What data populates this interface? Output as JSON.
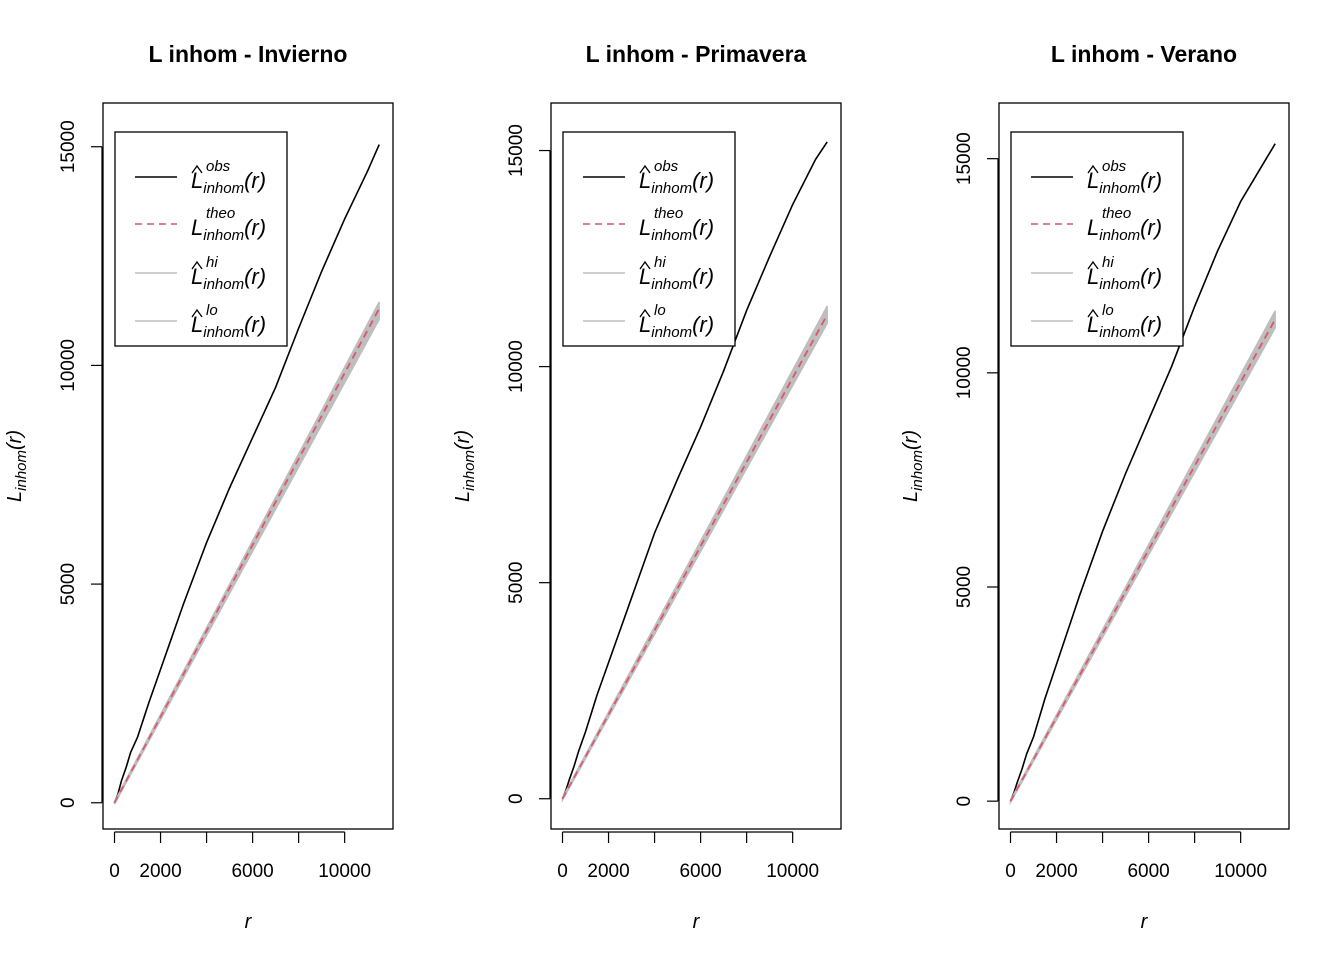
{
  "figure": {
    "background": "#ffffff"
  },
  "legend_entries": [
    {
      "sym": "L",
      "sup": "obs",
      "sub": "inhom",
      "arg": "(r)",
      "hat": true,
      "color": "#000000",
      "dash": false
    },
    {
      "sym": "L",
      "sup": "theo",
      "sub": "inhom",
      "arg": "(r)",
      "hat": false,
      "color": "#DF536B",
      "dash": true
    },
    {
      "sym": "L",
      "sup": "hi",
      "sub": "inhom",
      "arg": "(r)",
      "hat": true,
      "color": "#BEBEBE",
      "dash": false
    },
    {
      "sym": "L",
      "sup": "lo",
      "sub": "inhom",
      "arg": "(r)",
      "hat": true,
      "color": "#BEBEBE",
      "dash": false
    }
  ],
  "chart_data": [
    {
      "type": "line",
      "title": "L inhom - Invierno",
      "xlabel": "r",
      "ylabel": {
        "sym": "L",
        "sub": "inhom",
        "arg": "(r)"
      },
      "xlim": [
        -500,
        12100
      ],
      "ylim": [
        -600,
        16000
      ],
      "xticks": [
        0,
        2000,
        4000,
        6000,
        8000,
        10000
      ],
      "xtick_labels": [
        "0",
        "2000",
        "",
        "6000",
        "",
        "10000"
      ],
      "yticks": [
        0,
        5000,
        10000,
        15000
      ],
      "ytick_labels": [
        "0",
        "5000",
        "10000",
        "15000"
      ],
      "legend_position": "top-left",
      "series": [
        {
          "key": "obs",
          "x": [
            0,
            150,
            300,
            500,
            700,
            1000,
            1500,
            2000,
            2500,
            3000,
            3500,
            4000,
            5000,
            6000,
            7000,
            8000,
            9000,
            10000,
            11000,
            11500
          ],
          "y": [
            0,
            200,
            500,
            800,
            1150,
            1500,
            2300,
            3050,
            3800,
            4550,
            5250,
            5950,
            7200,
            8350,
            9500,
            10850,
            12150,
            13350,
            14450,
            15050
          ]
        },
        {
          "key": "theo",
          "x": [
            0,
            11500
          ],
          "y": [
            0,
            11300
          ]
        },
        {
          "key": "hi",
          "x": [
            0,
            11500
          ],
          "y": [
            30,
            11450
          ]
        },
        {
          "key": "lo",
          "x": [
            0,
            11500
          ],
          "y": [
            -30,
            11050
          ]
        }
      ]
    },
    {
      "type": "line",
      "title": "L inhom - Primavera",
      "xlabel": "r",
      "ylabel": {
        "sym": "L",
        "sub": "inhom",
        "arg": "(r)"
      },
      "xlim": [
        -500,
        12100
      ],
      "ylim": [
        -700,
        16100
      ],
      "xticks": [
        0,
        2000,
        4000,
        6000,
        8000,
        10000
      ],
      "xtick_labels": [
        "0",
        "2000",
        "",
        "6000",
        "",
        "10000"
      ],
      "yticks": [
        0,
        5000,
        10000,
        15000
      ],
      "ytick_labels": [
        "0",
        "5000",
        "10000",
        "15000"
      ],
      "legend_position": "top-left",
      "series": [
        {
          "key": "obs",
          "x": [
            0,
            150,
            300,
            500,
            700,
            1000,
            1500,
            2000,
            2500,
            3000,
            3500,
            4000,
            5000,
            6000,
            7000,
            8000,
            9000,
            10000,
            11000,
            11500
          ],
          "y": [
            0,
            200,
            450,
            750,
            1100,
            1550,
            2400,
            3150,
            3900,
            4650,
            5400,
            6150,
            7400,
            8600,
            9900,
            11300,
            12550,
            13750,
            14800,
            15200
          ]
        },
        {
          "key": "theo",
          "x": [
            0,
            11500
          ],
          "y": [
            0,
            11200
          ]
        },
        {
          "key": "hi",
          "x": [
            0,
            11500
          ],
          "y": [
            30,
            11400
          ]
        },
        {
          "key": "lo",
          "x": [
            0,
            11500
          ],
          "y": [
            -30,
            11000
          ]
        }
      ]
    },
    {
      "type": "line",
      "title": "L inhom - Verano",
      "xlabel": "r",
      "ylabel": {
        "sym": "L",
        "sub": "inhom",
        "arg": "(r)"
      },
      "xlim": [
        -500,
        12100
      ],
      "ylim": [
        -650,
        16300
      ],
      "xticks": [
        0,
        2000,
        4000,
        6000,
        8000,
        10000
      ],
      "xtick_labels": [
        "0",
        "2000",
        "",
        "6000",
        "",
        "10000"
      ],
      "yticks": [
        0,
        5000,
        10000,
        15000
      ],
      "ytick_labels": [
        "0",
        "5000",
        "10000",
        "15000"
      ],
      "legend_position": "top-left",
      "series": [
        {
          "key": "obs",
          "x": [
            0,
            150,
            300,
            500,
            700,
            1000,
            1500,
            2000,
            2500,
            3000,
            3500,
            4000,
            5000,
            6000,
            7000,
            8000,
            9000,
            10000,
            11000,
            11500
          ],
          "y": [
            0,
            200,
            450,
            750,
            1100,
            1500,
            2400,
            3200,
            4000,
            4800,
            5550,
            6300,
            7650,
            8900,
            10150,
            11550,
            12850,
            14000,
            14900,
            15350
          ]
        },
        {
          "key": "theo",
          "x": [
            0,
            11500
          ],
          "y": [
            0,
            11250
          ]
        },
        {
          "key": "hi",
          "x": [
            0,
            11500
          ],
          "y": [
            30,
            11450
          ]
        },
        {
          "key": "lo",
          "x": [
            0,
            11500
          ],
          "y": [
            -30,
            11050
          ]
        }
      ]
    }
  ]
}
